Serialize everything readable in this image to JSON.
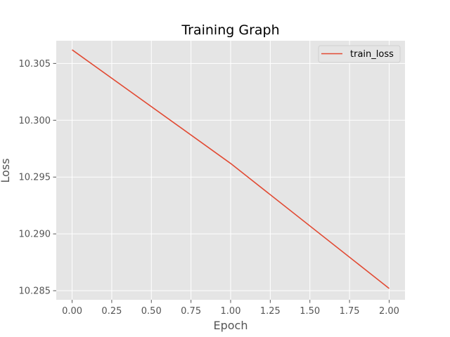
{
  "chart_data": {
    "type": "line",
    "title": "Training Graph",
    "xlabel": "Epoch",
    "ylabel": "Loss",
    "xlim": [
      -0.1,
      2.1
    ],
    "ylim": [
      10.2842,
      10.307
    ],
    "x_ticks": [
      0.0,
      0.25,
      0.5,
      0.75,
      1.0,
      1.25,
      1.5,
      1.75,
      2.0
    ],
    "x_tick_labels": [
      "0.00",
      "0.25",
      "0.50",
      "0.75",
      "1.00",
      "1.25",
      "1.50",
      "1.75",
      "2.00"
    ],
    "y_ticks": [
      10.285,
      10.29,
      10.295,
      10.3,
      10.305
    ],
    "y_tick_labels": [
      "10.285",
      "10.290",
      "10.295",
      "10.300",
      "10.305"
    ],
    "grid": true,
    "legend_position": "top-right",
    "series": [
      {
        "name": "train_loss",
        "color": "#e24a33",
        "x": [
          0,
          1,
          2
        ],
        "y": [
          10.3062,
          10.2962,
          10.2852
        ]
      }
    ]
  }
}
